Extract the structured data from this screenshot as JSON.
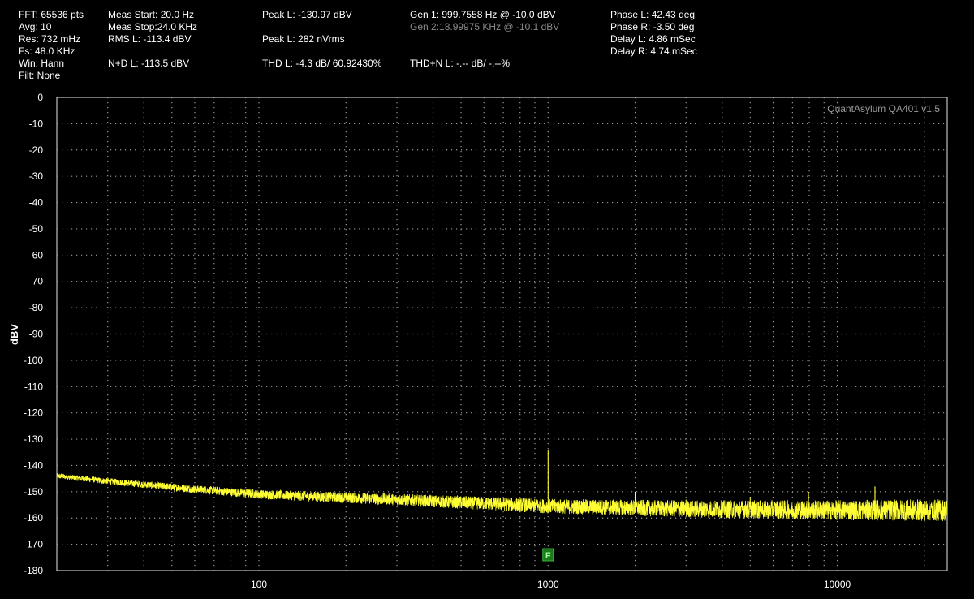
{
  "header": {
    "col1": [
      "FFT: 65536 pts",
      "Avg: 10",
      "Res: 732 mHz",
      "Fs: 48.0 KHz",
      "Win: Hann",
      "Filt: None"
    ],
    "col2": [
      "Meas Start: 20.0 Hz",
      "Meas Stop:24.0 KHz",
      "RMS L: -113.4 dBV",
      "N+D L: -113.5 dBV"
    ],
    "col3": [
      "Peak L: -130.97 dBV",
      "Peak L: 282 nVrms",
      "THD L: -4.3 dB/ 60.92430%"
    ],
    "col4": [
      "Gen 1: 999.7558 Hz @ -10.0  dBV",
      "Gen 2:18.99975 KHz @ -10.1  dBV",
      "THD+N L: -.-- dB/ -.--%"
    ],
    "col5": [
      "Phase L: 42.43 deg",
      "Phase R: -3.50 deg",
      "Delay L: 4.86 mSec",
      "Delay R: 4.74 mSec"
    ]
  },
  "watermark": "QuantAsylum QA401 v1.5",
  "marker_label": "F",
  "colors": {
    "trace": "#ffff33",
    "grid": "#9a9a9a",
    "marker_bg": "#1a7a1a",
    "marker_fg": "#9cff9c"
  },
  "chart_data": {
    "type": "line",
    "title": "",
    "xlabel": "",
    "ylabel": "dBV",
    "xscale": "log",
    "xlim": [
      20,
      24000
    ],
    "ylim": [
      -180,
      0
    ],
    "y_ticks": [
      "0",
      "-10",
      "-20",
      "-30",
      "-40",
      "-50",
      "-60",
      "-70",
      "-80",
      "-90",
      "-100",
      "-110",
      "-120",
      "-130",
      "-140",
      "-150",
      "-160",
      "-170",
      "-180"
    ],
    "x_ticks": [
      {
        "value": 100,
        "label": "100"
      },
      {
        "value": 1000,
        "label": "1000"
      },
      {
        "value": 10000,
        "label": "10000"
      }
    ],
    "grid": true,
    "marker": {
      "x": 1000,
      "label": "F"
    },
    "series": [
      {
        "noise_floor": [
          [
            20,
            -144
          ],
          [
            30,
            -146
          ],
          [
            60,
            -149
          ],
          [
            100,
            -151
          ],
          [
            300,
            -153
          ],
          [
            1000,
            -155.5
          ],
          [
            3000,
            -156.5
          ],
          [
            10000,
            -157
          ],
          [
            24000,
            -157
          ]
        ],
        "spurs": [
          [
            1000,
            -134
          ],
          [
            2000,
            -150
          ],
          [
            3000,
            -153
          ],
          [
            5000,
            -152
          ],
          [
            7950,
            -150
          ],
          [
            13500,
            -148
          ]
        ]
      }
    ]
  }
}
